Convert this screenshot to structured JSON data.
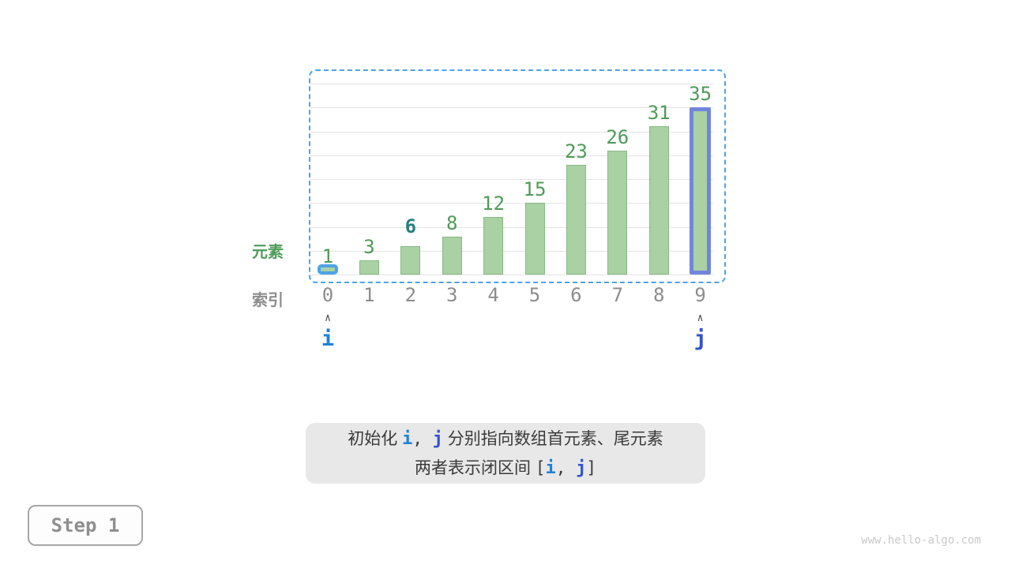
{
  "chart_data": {
    "type": "bar",
    "categories": [
      "0",
      "1",
      "2",
      "3",
      "4",
      "5",
      "6",
      "7",
      "8",
      "9"
    ],
    "values": [
      1,
      3,
      6,
      8,
      12,
      15,
      23,
      26,
      31,
      35
    ],
    "ylabel": "元素",
    "xlabel": "索引",
    "ylim": [
      0,
      40
    ],
    "gridline_step": 5,
    "grid": "on",
    "highlighted_value_index": 2,
    "i_bar_index": 0,
    "j_bar_index": 9
  },
  "pointers": {
    "caret_glyph": "∧",
    "i_label": "i",
    "j_label": "j"
  },
  "caption": {
    "line1": [
      {
        "t": "初始化 ",
        "s": "cjk"
      },
      {
        "t": "i",
        "s": "i"
      },
      {
        "t": ",",
        "s": "mono"
      },
      {
        "t": " ",
        "s": "mono"
      },
      {
        "t": "j",
        "s": "j"
      },
      {
        "t": " 分别指向数组首元素、尾元素",
        "s": "cjk"
      }
    ],
    "line2": [
      {
        "t": "两者表示闭区间 ",
        "s": "cjk"
      },
      {
        "t": "[",
        "s": "mono"
      },
      {
        "t": "i",
        "s": "i"
      },
      {
        "t": ",",
        "s": "mono"
      },
      {
        "t": " ",
        "s": "mono"
      },
      {
        "t": "j",
        "s": "j"
      },
      {
        "t": "]",
        "s": "mono"
      }
    ]
  },
  "step": {
    "label": "Step 1"
  },
  "watermark": "www.hello-algo.com",
  "colors": {
    "bar_fill": "#a9d1a4",
    "bar_border": "#87bb82",
    "value_label": "#4e9b58",
    "value_label_highlight": "#27807e",
    "index_label": "#8c8c8c",
    "element_label": "#4e9b58",
    "interval_dash": "#4da3e8",
    "i_color": "#1f82d6",
    "j_color": "#3353cd",
    "i_bar_border": "#4da3e8",
    "j_bar_border": "#7186db",
    "gridline": "#e3e3e3",
    "caption_bg": "#e8e8e8",
    "caption_text": "#3a3a3a",
    "step_text": "#8f8f8f",
    "step_border": "#a6a6a6",
    "watermark_color": "#c9c9c9"
  }
}
